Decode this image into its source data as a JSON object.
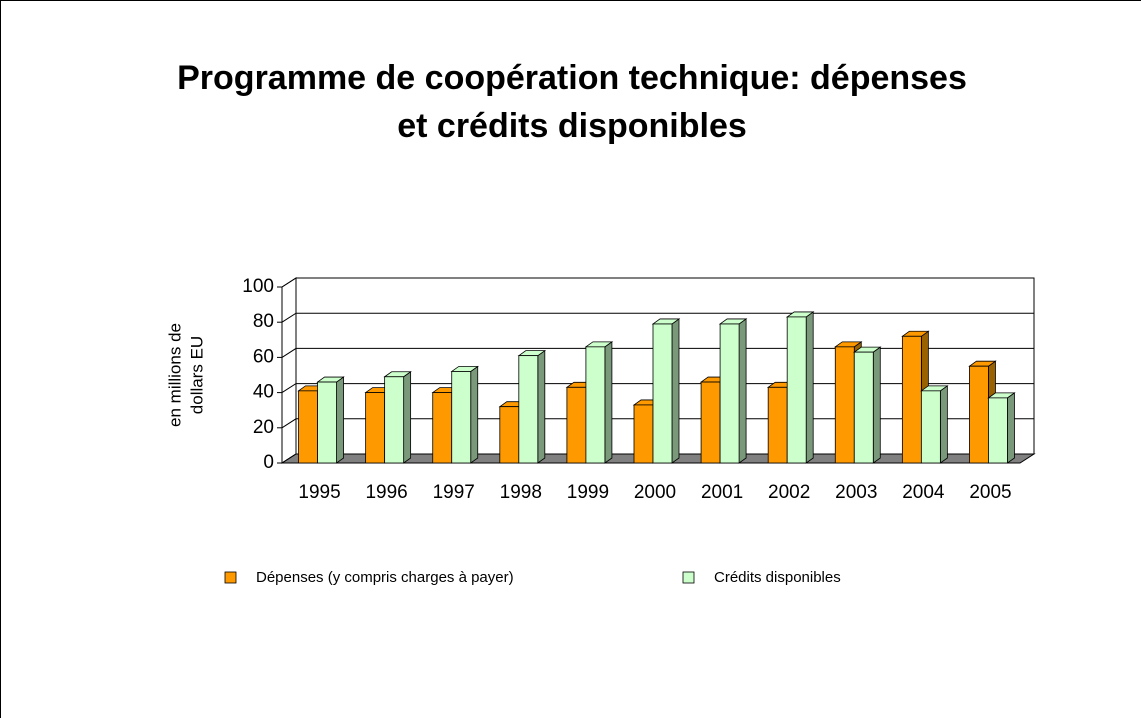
{
  "chart_data": {
    "type": "bar3d",
    "title_lines": [
      "Programme de coopération technique: dépenses",
      "et crédits disponibles"
    ],
    "y_label_lines": [
      "en millions de",
      "dollars EU"
    ],
    "categories": [
      "1995",
      "1996",
      "1997",
      "1998",
      "1999",
      "2000",
      "2001",
      "2002",
      "2003",
      "2004",
      "2005"
    ],
    "series": [
      {
        "name": "Dépenses (y compris charges à payer)",
        "color": "#ff9900",
        "side": "#996100",
        "values": [
          41,
          40,
          40,
          32,
          43,
          33,
          46,
          43,
          66,
          72,
          55
        ]
      },
      {
        "name": "Crédits disponibles",
        "color": "#ccffcc",
        "side": "#7a997a",
        "values": [
          46,
          49,
          52,
          61,
          66,
          79,
          79,
          83,
          63,
          41,
          37
        ]
      }
    ],
    "ylim": [
      0,
      100
    ],
    "yticks": [
      0,
      20,
      40,
      60,
      80,
      100
    ],
    "grid": true
  }
}
